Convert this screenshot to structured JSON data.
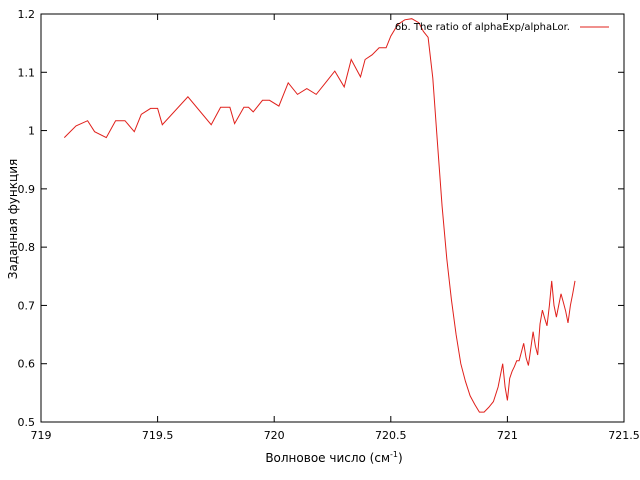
{
  "chart_data": {
    "type": "line",
    "xlabel": "Волновое число (см",
    "xlabel_sup": "-1",
    "xlabel_end": ")",
    "ylabel": "Заданная функция",
    "xlim": [
      719,
      721.5
    ],
    "ylim": [
      0.5,
      1.2
    ],
    "xticks": [
      719,
      719.5,
      720,
      720.5,
      721,
      721.5
    ],
    "xtick_labels": [
      "719",
      "719.5",
      "720",
      "720.5",
      "721",
      "721.5"
    ],
    "yticks": [
      0.5,
      0.6,
      0.7,
      0.8,
      0.9,
      1,
      1.1,
      1.2
    ],
    "ytick_labels": [
      "0.5",
      "0.6",
      "0.7",
      "0.8",
      "0.9",
      "1",
      "1.1",
      "1.2"
    ],
    "grid": false,
    "legend_position": "top-right",
    "series": [
      {
        "name": "6b. The ratio of alphaExp/alphaLor.",
        "color": "#e0201b",
        "x": [
          719.1,
          719.15,
          719.2,
          719.23,
          719.28,
          719.32,
          719.36,
          719.4,
          719.43,
          719.47,
          719.5,
          719.52,
          719.63,
          719.73,
          719.77,
          719.81,
          719.83,
          719.87,
          719.89,
          719.91,
          719.95,
          719.98,
          720.02,
          720.06,
          720.1,
          720.14,
          720.18,
          720.22,
          720.26,
          720.3,
          720.33,
          720.37,
          720.39,
          720.42,
          720.45,
          720.48,
          720.5,
          720.53,
          720.56,
          720.59,
          720.62,
          720.64,
          720.66,
          720.68,
          720.7,
          720.72,
          720.74,
          720.76,
          720.78,
          720.8,
          720.82,
          720.84,
          720.86,
          720.88,
          720.9,
          720.92,
          720.94,
          720.96,
          720.98,
          720.99,
          721.0,
          721.01,
          721.02,
          721.03,
          721.04,
          721.05,
          721.06,
          721.07,
          721.08,
          721.09,
          721.1,
          721.11,
          721.12,
          721.13,
          721.14,
          721.15,
          721.16,
          721.17,
          721.18,
          721.19,
          721.2,
          721.21,
          721.22,
          721.23,
          721.24,
          721.25,
          721.26,
          721.27,
          721.28,
          721.29
        ],
        "y": [
          0.988,
          1.008,
          1.017,
          0.998,
          0.988,
          1.017,
          1.017,
          0.998,
          1.028,
          1.038,
          1.038,
          1.01,
          1.058,
          1.01,
          1.04,
          1.04,
          1.012,
          1.04,
          1.04,
          1.032,
          1.052,
          1.052,
          1.042,
          1.082,
          1.062,
          1.072,
          1.062,
          1.082,
          1.102,
          1.075,
          1.122,
          1.092,
          1.122,
          1.13,
          1.142,
          1.142,
          1.162,
          1.182,
          1.19,
          1.192,
          1.185,
          1.17,
          1.16,
          1.09,
          0.98,
          0.87,
          0.78,
          0.71,
          0.65,
          0.6,
          0.57,
          0.545,
          0.53,
          0.517,
          0.517,
          0.525,
          0.535,
          0.56,
          0.6,
          0.56,
          0.537,
          0.575,
          0.587,
          0.595,
          0.605,
          0.605,
          0.62,
          0.635,
          0.61,
          0.597,
          0.625,
          0.655,
          0.63,
          0.615,
          0.668,
          0.692,
          0.678,
          0.665,
          0.7,
          0.742,
          0.7,
          0.68,
          0.7,
          0.72,
          0.705,
          0.69,
          0.67,
          0.7,
          0.72,
          0.742
        ]
      }
    ]
  }
}
